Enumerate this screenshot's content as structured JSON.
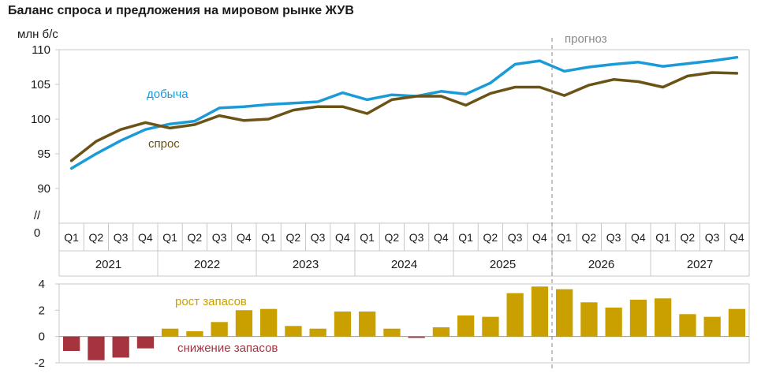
{
  "chart_data": [
    {
      "type": "line",
      "title": "Баланс спроса и предложения на мировом рынке ЖУВ",
      "ylabel": "млн б/с",
      "ylim": [
        90,
        110
      ],
      "y_axis_break": true,
      "y_ticks": [
        "110",
        "105",
        "100",
        "95",
        "90",
        "//",
        "0"
      ],
      "quarters": [
        "Q1",
        "Q2",
        "Q3",
        "Q4"
      ],
      "years": [
        "2021",
        "2022",
        "2023",
        "2024",
        "2025",
        "2026",
        "2027"
      ],
      "forecast_label": "прогноз",
      "forecast_from_index": 20,
      "grid": false,
      "series": [
        {
          "name": "добыча",
          "color": "#1a9bd7",
          "values": [
            92.9,
            95.0,
            96.9,
            98.5,
            99.3,
            99.7,
            101.6,
            101.8,
            102.1,
            102.3,
            102.5,
            103.8,
            102.8,
            103.5,
            103.3,
            104.0,
            103.6,
            105.2,
            107.9,
            108.4,
            106.9,
            107.5,
            107.9,
            108.2,
            107.6,
            108.0,
            108.4,
            108.9
          ]
        },
        {
          "name": "спрос",
          "color": "#6b5316",
          "values": [
            94.0,
            96.8,
            98.5,
            99.5,
            98.7,
            99.2,
            100.5,
            99.8,
            100.0,
            101.3,
            101.8,
            101.8,
            100.8,
            102.8,
            103.3,
            103.3,
            102.0,
            103.7,
            104.6,
            104.6,
            103.4,
            104.9,
            105.7,
            105.4,
            104.6,
            106.2,
            106.7,
            106.6
          ]
        }
      ]
    },
    {
      "type": "bar",
      "ylim": [
        -2,
        4
      ],
      "y_ticks": [
        "4",
        "2",
        "0",
        "-2"
      ],
      "positive_label": "рост запасов",
      "negative_label": "снижение запасов",
      "positive_color": "#c9a000",
      "negative_color": "#a6343f",
      "values": [
        -1.1,
        -1.8,
        -1.6,
        -0.9,
        0.6,
        0.4,
        1.1,
        2.0,
        2.1,
        0.8,
        0.6,
        1.9,
        1.9,
        0.6,
        -0.1,
        0.7,
        1.6,
        1.5,
        3.3,
        3.8,
        3.6,
        2.6,
        2.2,
        2.8,
        2.9,
        1.7,
        1.5,
        2.1
      ]
    }
  ]
}
